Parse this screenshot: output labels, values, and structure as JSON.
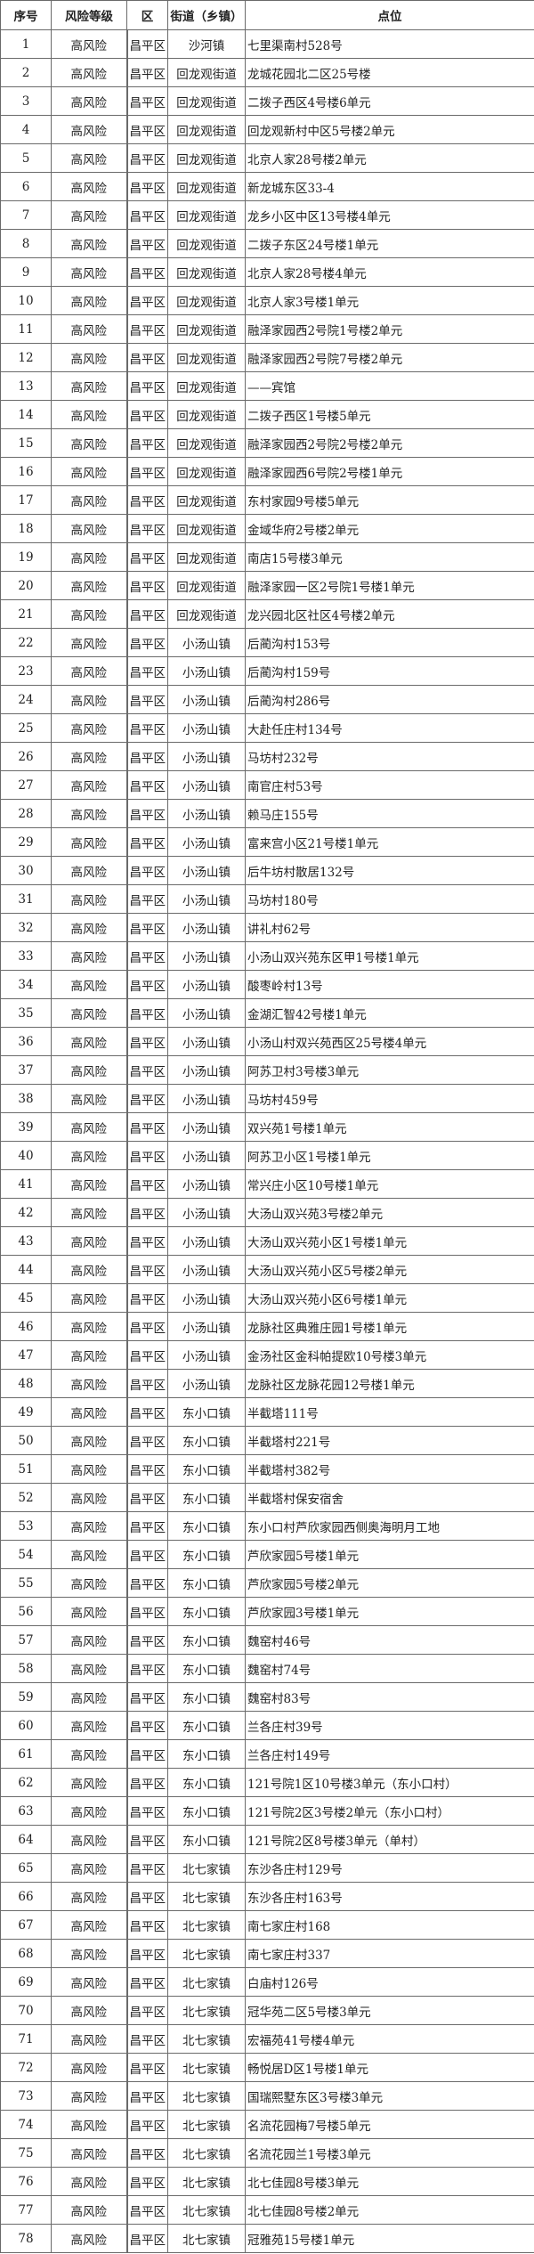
{
  "table": {
    "headers": [
      "序号",
      "风险等级",
      "区",
      "街道（乡镇）",
      "点位"
    ],
    "rows": [
      [
        "1",
        "高风险",
        "昌平区",
        "沙河镇",
        "七里渠南村528号"
      ],
      [
        "2",
        "高风险",
        "昌平区",
        "回龙观街道",
        "龙城花园北二区25号楼"
      ],
      [
        "3",
        "高风险",
        "昌平区",
        "回龙观街道",
        "二拨子西区4号楼6单元"
      ],
      [
        "4",
        "高风险",
        "昌平区",
        "回龙观街道",
        "回龙观新村中区5号楼2单元"
      ],
      [
        "5",
        "高风险",
        "昌平区",
        "回龙观街道",
        "北京人家28号楼2单元"
      ],
      [
        "6",
        "高风险",
        "昌平区",
        "回龙观街道",
        "新龙城东区33-4"
      ],
      [
        "7",
        "高风险",
        "昌平区",
        "回龙观街道",
        "龙乡小区中区13号楼4单元"
      ],
      [
        "8",
        "高风险",
        "昌平区",
        "回龙观街道",
        "二拨子东区24号楼1单元"
      ],
      [
        "9",
        "高风险",
        "昌平区",
        "回龙观街道",
        "北京人家28号楼4单元"
      ],
      [
        "10",
        "高风险",
        "昌平区",
        "回龙观街道",
        "北京人家3号楼1单元"
      ],
      [
        "11",
        "高风险",
        "昌平区",
        "回龙观街道",
        "融泽家园西2号院1号楼2单元"
      ],
      [
        "12",
        "高风险",
        "昌平区",
        "回龙观街道",
        "融泽家园西2号院7号楼2单元"
      ],
      [
        "13",
        "高风险",
        "昌平区",
        "回龙观街道",
        "——宾馆"
      ],
      [
        "14",
        "高风险",
        "昌平区",
        "回龙观街道",
        "二拨子西区1号楼5单元"
      ],
      [
        "15",
        "高风险",
        "昌平区",
        "回龙观街道",
        "融泽家园西2号院2号楼2单元"
      ],
      [
        "16",
        "高风险",
        "昌平区",
        "回龙观街道",
        "融泽家园西6号院2号楼1单元"
      ],
      [
        "17",
        "高风险",
        "昌平区",
        "回龙观街道",
        "东村家园9号楼5单元"
      ],
      [
        "18",
        "高风险",
        "昌平区",
        "回龙观街道",
        "金域华府2号楼2单元"
      ],
      [
        "19",
        "高风险",
        "昌平区",
        "回龙观街道",
        "南店15号楼3单元"
      ],
      [
        "20",
        "高风险",
        "昌平区",
        "回龙观街道",
        "融泽家园一区2号院1号楼1单元"
      ],
      [
        "21",
        "高风险",
        "昌平区",
        "回龙观街道",
        "龙兴园北区社区4号楼2单元"
      ],
      [
        "22",
        "高风险",
        "昌平区",
        "小汤山镇",
        "后蔺沟村153号"
      ],
      [
        "23",
        "高风险",
        "昌平区",
        "小汤山镇",
        "后蔺沟村159号"
      ],
      [
        "24",
        "高风险",
        "昌平区",
        "小汤山镇",
        "后蔺沟村286号"
      ],
      [
        "25",
        "高风险",
        "昌平区",
        "小汤山镇",
        "大赴任庄村134号"
      ],
      [
        "26",
        "高风险",
        "昌平区",
        "小汤山镇",
        "马坊村232号"
      ],
      [
        "27",
        "高风险",
        "昌平区",
        "小汤山镇",
        "南官庄村53号"
      ],
      [
        "28",
        "高风险",
        "昌平区",
        "小汤山镇",
        "赖马庄155号"
      ],
      [
        "29",
        "高风险",
        "昌平区",
        "小汤山镇",
        "富来宫小区21号楼1单元"
      ],
      [
        "30",
        "高风险",
        "昌平区",
        "小汤山镇",
        "后牛坊村散居132号"
      ],
      [
        "31",
        "高风险",
        "昌平区",
        "小汤山镇",
        "马坊村180号"
      ],
      [
        "32",
        "高风险",
        "昌平区",
        "小汤山镇",
        "讲礼村62号"
      ],
      [
        "33",
        "高风险",
        "昌平区",
        "小汤山镇",
        "小汤山双兴苑东区甲1号楼1单元"
      ],
      [
        "34",
        "高风险",
        "昌平区",
        "小汤山镇",
        "酸枣岭村13号"
      ],
      [
        "35",
        "高风险",
        "昌平区",
        "小汤山镇",
        "金湖汇智42号楼1单元"
      ],
      [
        "36",
        "高风险",
        "昌平区",
        "小汤山镇",
        "小汤山村双兴苑西区25号楼4单元"
      ],
      [
        "37",
        "高风险",
        "昌平区",
        "小汤山镇",
        "阿苏卫村3号楼3单元"
      ],
      [
        "38",
        "高风险",
        "昌平区",
        "小汤山镇",
        "马坊村459号"
      ],
      [
        "39",
        "高风险",
        "昌平区",
        "小汤山镇",
        "双兴苑1号楼1单元"
      ],
      [
        "40",
        "高风险",
        "昌平区",
        "小汤山镇",
        "阿苏卫小区1号楼1单元"
      ],
      [
        "41",
        "高风险",
        "昌平区",
        "小汤山镇",
        "常兴庄小区10号楼1单元"
      ],
      [
        "42",
        "高风险",
        "昌平区",
        "小汤山镇",
        "大汤山双兴苑3号楼2单元"
      ],
      [
        "43",
        "高风险",
        "昌平区",
        "小汤山镇",
        "大汤山双兴苑小区1号楼1单元"
      ],
      [
        "44",
        "高风险",
        "昌平区",
        "小汤山镇",
        "大汤山双兴苑小区5号楼2单元"
      ],
      [
        "45",
        "高风险",
        "昌平区",
        "小汤山镇",
        "大汤山双兴苑小区6号楼1单元"
      ],
      [
        "46",
        "高风险",
        "昌平区",
        "小汤山镇",
        "龙脉社区典雅庄园1号楼1单元"
      ],
      [
        "47",
        "高风险",
        "昌平区",
        "小汤山镇",
        "金汤社区金科帕提欧10号楼3单元"
      ],
      [
        "48",
        "高风险",
        "昌平区",
        "小汤山镇",
        "龙脉社区龙脉花园12号楼1单元"
      ],
      [
        "49",
        "高风险",
        "昌平区",
        "东小口镇",
        "半截塔111号"
      ],
      [
        "50",
        "高风险",
        "昌平区",
        "东小口镇",
        "半截塔村221号"
      ],
      [
        "51",
        "高风险",
        "昌平区",
        "东小口镇",
        "半截塔村382号"
      ],
      [
        "52",
        "高风险",
        "昌平区",
        "东小口镇",
        "半截塔村保安宿舍"
      ],
      [
        "53",
        "高风险",
        "昌平区",
        "东小口镇",
        "东小口村芦欣家园西侧奥海明月工地"
      ],
      [
        "54",
        "高风险",
        "昌平区",
        "东小口镇",
        "芦欣家园5号楼1单元"
      ],
      [
        "55",
        "高风险",
        "昌平区",
        "东小口镇",
        "芦欣家园5号楼2单元"
      ],
      [
        "56",
        "高风险",
        "昌平区",
        "东小口镇",
        "芦欣家园3号楼1单元"
      ],
      [
        "57",
        "高风险",
        "昌平区",
        "东小口镇",
        "魏窑村46号"
      ],
      [
        "58",
        "高风险",
        "昌平区",
        "东小口镇",
        "魏窑村74号"
      ],
      [
        "59",
        "高风险",
        "昌平区",
        "东小口镇",
        "魏窑村83号"
      ],
      [
        "60",
        "高风险",
        "昌平区",
        "东小口镇",
        "兰各庄村39号"
      ],
      [
        "61",
        "高风险",
        "昌平区",
        "东小口镇",
        "兰各庄村149号"
      ],
      [
        "62",
        "高风险",
        "昌平区",
        "东小口镇",
        "121号院1区10号楼3单元（东小口村）"
      ],
      [
        "63",
        "高风险",
        "昌平区",
        "东小口镇",
        "121号院2区3号楼2单元（东小口村）"
      ],
      [
        "64",
        "高风险",
        "昌平区",
        "东小口镇",
        "121号院2区8号楼3单元（单村）"
      ],
      [
        "65",
        "高风险",
        "昌平区",
        "北七家镇",
        "东沙各庄村129号"
      ],
      [
        "66",
        "高风险",
        "昌平区",
        "北七家镇",
        "东沙各庄村163号"
      ],
      [
        "67",
        "高风险",
        "昌平区",
        "北七家镇",
        "南七家庄村168"
      ],
      [
        "68",
        "高风险",
        "昌平区",
        "北七家镇",
        "南七家庄村337"
      ],
      [
        "69",
        "高风险",
        "昌平区",
        "北七家镇",
        "白庙村126号"
      ],
      [
        "70",
        "高风险",
        "昌平区",
        "北七家镇",
        "冠华苑二区5号楼3单元"
      ],
      [
        "71",
        "高风险",
        "昌平区",
        "北七家镇",
        "宏福苑41号楼4单元"
      ],
      [
        "72",
        "高风险",
        "昌平区",
        "北七家镇",
        "畅悦居D区1号楼1单元"
      ],
      [
        "73",
        "高风险",
        "昌平区",
        "北七家镇",
        "国瑞熙墅东区3号楼3单元"
      ],
      [
        "74",
        "高风险",
        "昌平区",
        "北七家镇",
        "名流花园梅7号楼5单元"
      ],
      [
        "75",
        "高风险",
        "昌平区",
        "北七家镇",
        "名流花园兰1号楼3单元"
      ],
      [
        "76",
        "高风险",
        "昌平区",
        "北七家镇",
        "北七佳园8号楼3单元"
      ],
      [
        "77",
        "高风险",
        "昌平区",
        "北七家镇",
        "北七佳园8号楼2单元"
      ],
      [
        "78",
        "高风险",
        "昌平区",
        "北七家镇",
        "冠雅苑15号楼1单元"
      ]
    ]
  }
}
